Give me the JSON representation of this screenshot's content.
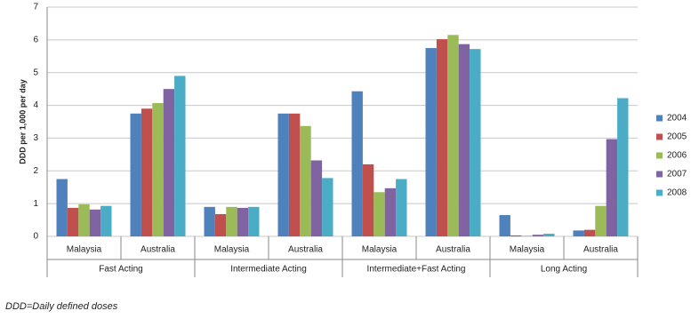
{
  "chart_data": {
    "type": "bar",
    "y_label": "DDD per 1,000 per day",
    "groups": [
      "Fast Acting",
      "Intermediate Acting",
      "Intermediate+Fast Acting",
      "Long Acting"
    ],
    "categories": [
      "Malaysia",
      "Australia",
      "Malaysia",
      "Australia",
      "Malaysia",
      "Australia",
      "Malaysia",
      "Australia"
    ],
    "series": [
      {
        "name": "2004",
        "color": "#4f81bd",
        "values": [
          1.75,
          3.75,
          0.9,
          3.75,
          4.43,
          5.75,
          0.65,
          0.18
        ]
      },
      {
        "name": "2005",
        "color": "#c0504d",
        "values": [
          0.87,
          3.9,
          0.68,
          3.75,
          2.2,
          6.02,
          0.03,
          0.2
        ]
      },
      {
        "name": "2006",
        "color": "#9bbb59",
        "values": [
          0.98,
          4.07,
          0.9,
          3.37,
          1.35,
          6.15,
          0.02,
          0.93
        ]
      },
      {
        "name": "2007",
        "color": "#8064a2",
        "values": [
          0.82,
          4.5,
          0.87,
          2.32,
          1.47,
          5.87,
          0.05,
          2.97
        ]
      },
      {
        "name": "2008",
        "color": "#4bacc6",
        "values": [
          0.93,
          4.9,
          0.9,
          1.78,
          1.75,
          5.72,
          0.08,
          4.22
        ]
      }
    ],
    "ylim": [
      0,
      7
    ],
    "yticks": [
      0,
      1,
      2,
      3,
      4,
      5,
      6,
      7
    ],
    "grid": true,
    "legend": "right",
    "footnote": "DDD=Daily defined doses"
  }
}
